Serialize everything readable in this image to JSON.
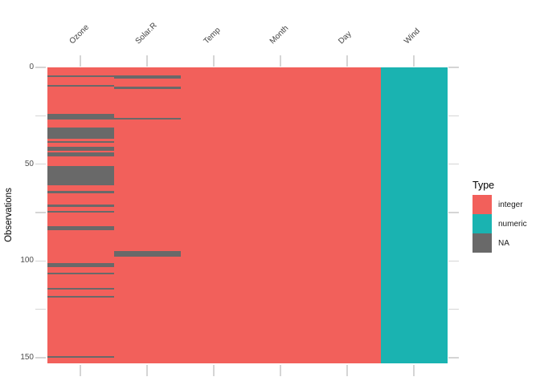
{
  "chart_data": {
    "type": "heatmap",
    "title": "",
    "xlabel": "",
    "ylabel": "Observations",
    "n_observations": 153,
    "y_axis": {
      "labeled_breaks": [
        0,
        50,
        100,
        150
      ],
      "unlabeled_breaks": [
        25,
        75,
        125
      ],
      "range": [
        0,
        153
      ]
    },
    "columns": [
      {
        "name": "Ozone",
        "type": "integer",
        "na_row_ranges": [
          [
            5,
            5
          ],
          [
            10,
            10
          ],
          [
            25,
            27
          ],
          [
            32,
            37
          ],
          [
            39,
            39
          ],
          [
            42,
            43
          ],
          [
            45,
            46
          ],
          [
            52,
            61
          ],
          [
            65,
            65
          ],
          [
            72,
            72
          ],
          [
            75,
            75
          ],
          [
            83,
            84
          ],
          [
            102,
            103
          ],
          [
            107,
            107
          ],
          [
            115,
            115
          ],
          [
            119,
            119
          ],
          [
            150,
            150
          ]
        ]
      },
      {
        "name": "Solar.R",
        "type": "integer",
        "na_row_ranges": [
          [
            5,
            6
          ],
          [
            11,
            11
          ],
          [
            27,
            27
          ],
          [
            96,
            98
          ]
        ]
      },
      {
        "name": "Temp",
        "type": "integer",
        "na_row_ranges": []
      },
      {
        "name": "Month",
        "type": "integer",
        "na_row_ranges": []
      },
      {
        "name": "Day",
        "type": "integer",
        "na_row_ranges": []
      },
      {
        "name": "Wind",
        "type": "numeric",
        "na_row_ranges": []
      }
    ],
    "legend": {
      "title": "Type",
      "position": "right",
      "entries": [
        {
          "label": "integer",
          "color": "#f2605b"
        },
        {
          "label": "numeric",
          "color": "#1ab3b1"
        },
        {
          "label": "NA",
          "color": "#696969"
        }
      ]
    },
    "style": {
      "tick_color": "#d5d5d5",
      "axis_text_color": "#4d4d4d",
      "column_label_color": "#414141",
      "grid": "off",
      "background": "#ffffff"
    }
  }
}
